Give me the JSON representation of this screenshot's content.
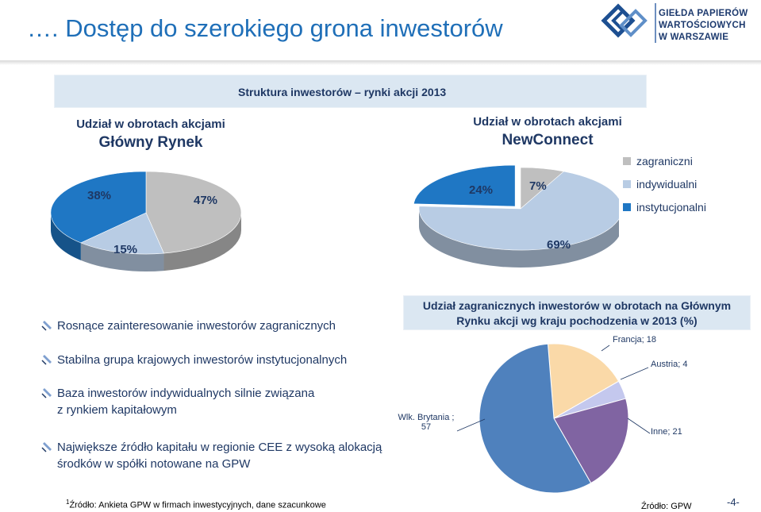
{
  "slide": {
    "title": "…. Dostęp do szerokiego grona inwestorów",
    "logo_line1": "GIEŁDA PAPIERÓW",
    "logo_line2": "WARTOŚCIOWYCH",
    "logo_line3": "W WARSZAWIE"
  },
  "structure": {
    "title": "Struktura inwestorów – rynki akcji 2013",
    "main_market": {
      "header_line1": "Udział w obrotach akcjami",
      "header_line2": "Główny Rynek",
      "labels": [
        "38%",
        "47%",
        "15%"
      ]
    },
    "newconnect": {
      "header_line1": "Udział w obrotach akcjami",
      "header_line2": "NewConnect",
      "labels": [
        "24%",
        "7%",
        "69%"
      ]
    },
    "legend": [
      "zagraniczni",
      "indywidualni",
      "instytucjonalni"
    ]
  },
  "bullets": [
    "Rosnące zainteresowanie inwestorów zagranicznych",
    "Stabilna grupa krajowych inwestorów instytucjonalnych",
    "Baza inwestorów indywidualnych silnie związana",
    "z rynkiem kapitałowym",
    "Największe źródło kapitału w regionie CEE z wysoką alokacją",
    "środków w spółki  notowane na GPW"
  ],
  "country_chart": {
    "title_line1": "Udział zagranicznych inwestorów w obrotach na Głównym",
    "title_line2": "Rynku akcji wg kraju pochodzenia w 2013 (%)",
    "labels": {
      "francja": "Francja; 18",
      "austria": "Austria; 4",
      "inne": "Inne; 21",
      "uk_line1": "Wlk. Brytania ;",
      "uk_line2": "57"
    }
  },
  "footer": {
    "footnote_sup": "1",
    "footnote": "Źródło: Ankieta GPW w firmach inwestycyjnych, dane szacunkowe",
    "source": "Źródło: GPW",
    "page": "-4-"
  },
  "chart_data": [
    {
      "type": "pie",
      "title": "Udział w obrotach akcjami Główny Rynek",
      "categories": [
        "zagraniczni",
        "indywidualni",
        "instytucjonalni"
      ],
      "values": [
        47,
        15,
        38
      ],
      "unit": "%"
    },
    {
      "type": "pie",
      "title": "Udział w obrotach akcjami NewConnect",
      "categories": [
        "zagraniczni",
        "indywidualni",
        "instytucjonalni"
      ],
      "values": [
        7,
        69,
        24
      ],
      "unit": "%"
    },
    {
      "type": "pie",
      "title": "Udział zagranicznych inwestorów w obrotach na Głównym Rynku akcji wg kraju pochodzenia w 2013 (%)",
      "categories": [
        "Francja",
        "Austria",
        "Inne",
        "Wlk. Brytania"
      ],
      "values": [
        18,
        4,
        21,
        57
      ]
    }
  ],
  "colors": {
    "title": "#1f6fb8",
    "zagraniczni": "#bfbfbf",
    "indywidualni": "#b8cce4",
    "instytucjonalni": "#1f77c4",
    "francja": "#fad9a8",
    "austria": "#c4c8ee",
    "inne": "#8064a2",
    "wlk_brytania": "#4f81bd"
  }
}
